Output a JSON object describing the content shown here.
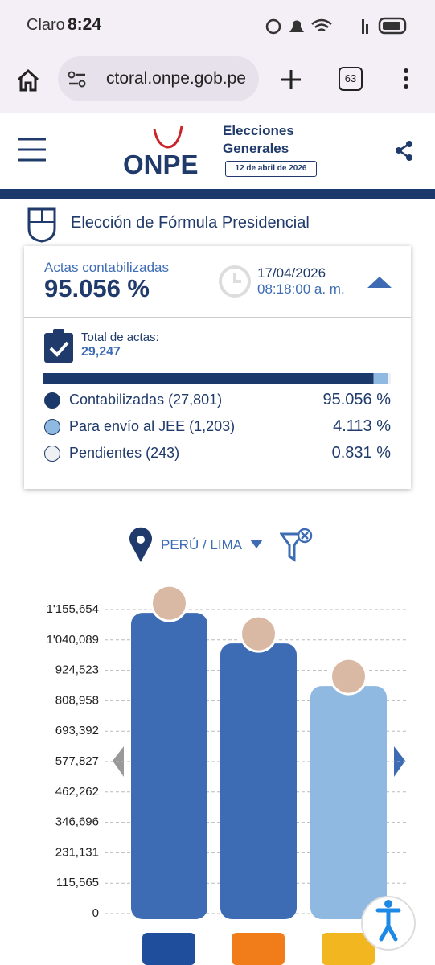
{
  "status_bar": {
    "carrier": "Claro",
    "time": "8:24"
  },
  "browser": {
    "url": "ctoral.onpe.gob.pe",
    "tabs": "63"
  },
  "header": {
    "logo": "ONPE",
    "line1": "Elecciones",
    "line2": "Generales",
    "date": "12 de abril de 2026"
  },
  "section_title": "Elección de Fórmula Presidencial",
  "summary": {
    "label": "Actas contabilizadas",
    "percent": "95.056 %",
    "date": "17/04/2026",
    "time": "08:18:00 a. m.",
    "total_label": "Total de actas:",
    "total": "29,247",
    "items": [
      {
        "label": "Contabilizadas (27,801)",
        "value": 95.056,
        "value_label": "95.056 %",
        "color": "#1b3a6b"
      },
      {
        "label": "Para envío al JEE (1,203)",
        "value": 4.113,
        "value_label": "4.113 %",
        "color": "#8fb9e0"
      },
      {
        "label": "Pendientes (243)",
        "value": 0.831,
        "value_label": "0.831 %",
        "color": "#eef0f3"
      }
    ]
  },
  "filter": "PERÚ / LIMA",
  "chart_data": {
    "type": "bar",
    "categories": [
      null,
      null,
      null
    ],
    "values": [
      1143000,
      1027000,
      865000
    ],
    "colors": [
      "#3d6cb4",
      "#3d6cb4",
      "#8fb9e0"
    ],
    "ylim": [
      0,
      1155654
    ],
    "yticks": [
      0,
      {
        "value": 115565,
        "label": "115,565"
      },
      {
        "value": 231131,
        "label": "231,131"
      },
      {
        "value": 346696,
        "label": "346,696"
      },
      {
        "value": 462262,
        "label": "462,262"
      },
      {
        "value": 577827,
        "label": "577,827"
      },
      {
        "value": 693392,
        "label": "693,392"
      },
      {
        "value": 808958,
        "label": "808,958"
      },
      {
        "value": 924523,
        "label": "924,523"
      },
      {
        "value": 1040089,
        "label": "1'040,089"
      },
      {
        "value": 1155654,
        "label": "1'155,654"
      }
    ],
    "grid": true
  }
}
